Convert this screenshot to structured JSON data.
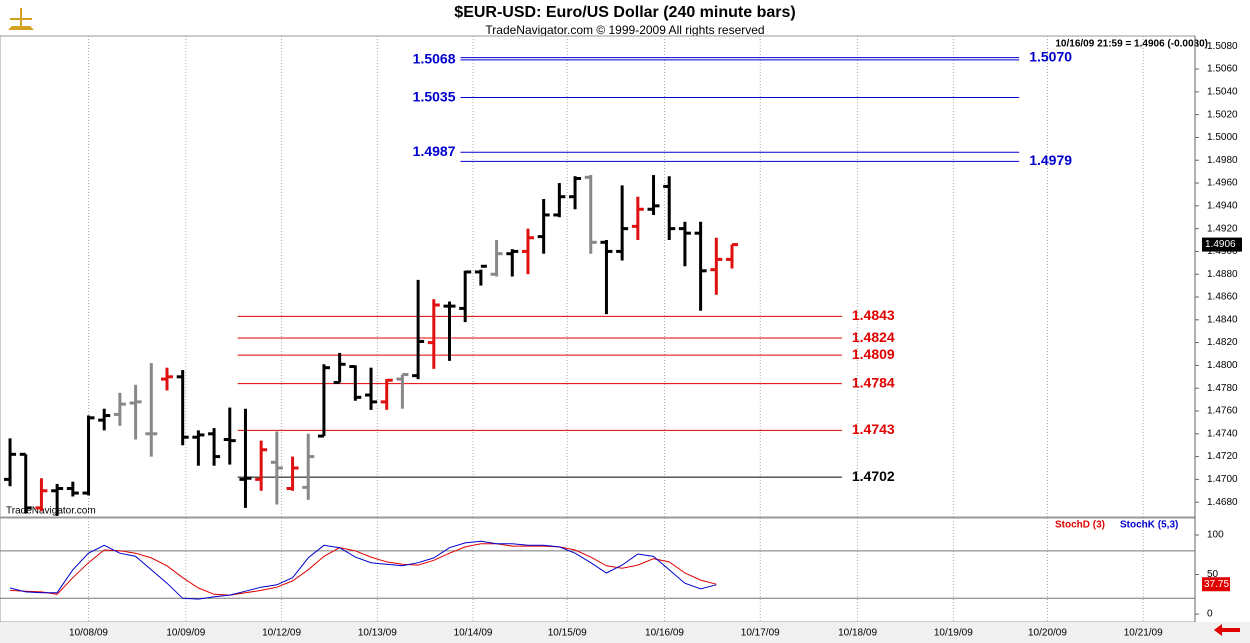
{
  "chart_data": [
    {
      "type": "ohlc",
      "title": "$EUR-USD:  Euro/US Dollar  (240 minute bars)",
      "subtitle": "TradeNavigator.com © 1999-2009 All rights reserved",
      "info": "10/16/09 21:59 = 1.4906 (-0.0030)",
      "watermark": "TradeNavigator.com",
      "open": [
        1.47,
        1.4722,
        1.4675,
        1.469,
        1.4692,
        1.4688,
        1.4752,
        1.4757,
        1.4767,
        1.474,
        1.4788,
        1.479,
        1.4737,
        1.474,
        1.4735,
        1.47,
        1.47,
        1.4715,
        1.4692,
        1.4693,
        1.4738,
        1.4785,
        1.4799,
        1.4774,
        1.4768,
        1.4788,
        1.4791,
        1.482,
        1.4852,
        1.485,
        1.4882,
        1.488,
        1.4898,
        1.49,
        1.4913,
        1.4932,
        1.4948,
        1.4965,
        1.4908,
        1.49,
        1.4922,
        1.4937,
        1.4957,
        1.492,
        1.4916,
        1.4884,
        1.4893
      ],
      "high": [
        1.4736,
        1.4722,
        1.4701,
        1.4696,
        1.4698,
        1.4756,
        1.4762,
        1.4776,
        1.4783,
        1.4802,
        1.4798,
        1.4796,
        1.4743,
        1.4745,
        1.4763,
        1.4762,
        1.4734,
        1.4742,
        1.472,
        1.474,
        1.4801,
        1.4811,
        1.48,
        1.4798,
        1.4788,
        1.4792,
        1.4875,
        1.4858,
        1.4856,
        1.4883,
        1.4884,
        1.491,
        1.4902,
        1.492,
        1.4946,
        1.496,
        1.4966,
        1.4967,
        1.491,
        1.4958,
        1.4948,
        1.4967,
        1.4966,
        1.4926,
        1.4926,
        1.4912,
        1.4906
      ],
      "low": [
        1.4694,
        1.467,
        1.4672,
        1.4668,
        1.4685,
        1.4686,
        1.4743,
        1.4747,
        1.4735,
        1.472,
        1.4778,
        1.473,
        1.4712,
        1.4712,
        1.4713,
        1.4675,
        1.469,
        1.4678,
        1.469,
        1.4682,
        1.4738,
        1.4785,
        1.4769,
        1.4761,
        1.4761,
        1.4762,
        1.4788,
        1.4797,
        1.4804,
        1.4838,
        1.487,
        1.4878,
        1.4878,
        1.488,
        1.4898,
        1.493,
        1.4937,
        1.4898,
        1.4845,
        1.4892,
        1.491,
        1.4932,
        1.491,
        1.4887,
        1.4848,
        1.4862,
        1.4885
      ],
      "close": [
        1.4722,
        1.4675,
        1.469,
        1.4692,
        1.4688,
        1.4754,
        1.4756,
        1.4766,
        1.4768,
        1.474,
        1.479,
        1.4737,
        1.4739,
        1.472,
        1.4734,
        1.4701,
        1.4726,
        1.471,
        1.471,
        1.472,
        1.4798,
        1.4801,
        1.4772,
        1.4768,
        1.4787,
        1.4792,
        1.4821,
        1.4853,
        1.4852,
        1.4882,
        1.4887,
        1.4898,
        1.49,
        1.4912,
        1.4932,
        1.4948,
        1.4964,
        1.4908,
        1.49,
        1.492,
        1.4937,
        1.494,
        1.492,
        1.4916,
        1.4883,
        1.4893,
        1.4906
      ],
      "bar_colors": [
        "#000000",
        "#000000",
        "#e01010",
        "#000000",
        "#000000",
        "#000000",
        "#000000",
        "#888888",
        "#888888",
        "#888888",
        "#e01010",
        "#000000",
        "#000000",
        "#000000",
        "#000000",
        "#000000",
        "#e01010",
        "#888888",
        "#e01010",
        "#888888",
        "#000000",
        "#000000",
        "#000000",
        "#000000",
        "#e01010",
        "#888888",
        "#000000",
        "#e01010",
        "#000000",
        "#000000",
        "#000000",
        "#888888",
        "#000000",
        "#e01010",
        "#000000",
        "#000000",
        "#000000",
        "#888888",
        "#000000",
        "#000000",
        "#e01010",
        "#000000",
        "#000000",
        "#000000",
        "#000000",
        "#e01010",
        "#e01010"
      ],
      "xlim": [
        -0.64,
        75.5
      ],
      "xticks": [
        {
          "value": 5,
          "label": "10/08/09"
        },
        {
          "value": 11.2,
          "label": "10/09/09"
        },
        {
          "value": 17.3,
          "label": "10/12/09"
        },
        {
          "value": 23.4,
          "label": "10/13/09"
        },
        {
          "value": 29.5,
          "label": "10/14/09"
        },
        {
          "value": 35.5,
          "label": "10/15/09"
        },
        {
          "value": 41.7,
          "label": "10/16/09"
        },
        {
          "value": 47.8,
          "label": "10/17/09"
        },
        {
          "value": 54,
          "label": "10/18/09"
        },
        {
          "value": 60.1,
          "label": "10/19/09"
        },
        {
          "value": 66.1,
          "label": "10/20/09"
        },
        {
          "value": 72.2,
          "label": "10/21/09"
        }
      ],
      "ylim": [
        1.4667,
        1.5089
      ],
      "yticks": [
        {
          "value": 1.468,
          "label": "1.4680"
        },
        {
          "value": 1.47,
          "label": "1.4700"
        },
        {
          "value": 1.472,
          "label": "1.4720"
        },
        {
          "value": 1.474,
          "label": "1.4740"
        },
        {
          "value": 1.476,
          "label": "1.4760"
        },
        {
          "value": 1.478,
          "label": "1.4780"
        },
        {
          "value": 1.48,
          "label": "1.4800"
        },
        {
          "value": 1.482,
          "label": "1.4820"
        },
        {
          "value": 1.484,
          "label": "1.4840"
        },
        {
          "value": 1.486,
          "label": "1.4860"
        },
        {
          "value": 1.488,
          "label": "1.4880"
        },
        {
          "value": 1.49,
          "label": "1.4900"
        },
        {
          "value": 1.492,
          "label": "1.4920"
        },
        {
          "value": 1.494,
          "label": "1.4940"
        },
        {
          "value": 1.496,
          "label": "1.4960"
        },
        {
          "value": 1.498,
          "label": "1.4980"
        },
        {
          "value": 1.5,
          "label": "1.5000"
        },
        {
          "value": 1.502,
          "label": "1.5020"
        },
        {
          "value": 1.504,
          "label": "1.5040"
        },
        {
          "value": 1.506,
          "label": "1.5060"
        },
        {
          "value": 1.508,
          "label": "1.5080"
        }
      ],
      "grid": true,
      "last_price": 1.4906,
      "levels": [
        {
          "value": 1.5068,
          "color": "#0000cc",
          "side": "left",
          "xrange": [
            28.7,
            64.3
          ]
        },
        {
          "value": 1.507,
          "label": "1.5070",
          "color": "#0000cc",
          "side": "right",
          "xrange": [
            28.7,
            64.3
          ]
        },
        {
          "value": 1.5035,
          "color": "#0000cc",
          "side": "left",
          "xrange": [
            28.7,
            64.3
          ]
        },
        {
          "value": 1.4987,
          "color": "#0000cc",
          "side": "left",
          "xrange": [
            28.7,
            64.3
          ]
        },
        {
          "value": 1.4979,
          "color": "#0000cc",
          "side": "right",
          "xrange": [
            28.7,
            64.3
          ]
        },
        {
          "value": 1.4843,
          "color": "#e00000",
          "side": "right",
          "xrange": [
            14.5,
            53
          ]
        },
        {
          "value": 1.4824,
          "color": "#e00000",
          "side": "right",
          "xrange": [
            14.5,
            53
          ]
        },
        {
          "value": 1.4809,
          "color": "#e00000",
          "side": "right",
          "xrange": [
            14.5,
            53
          ]
        },
        {
          "value": 1.4784,
          "color": "#e00000",
          "side": "right",
          "xrange": [
            14.5,
            53
          ]
        },
        {
          "value": 1.4743,
          "color": "#e00000",
          "side": "right",
          "xrange": [
            14.5,
            53
          ]
        },
        {
          "value": 1.4702,
          "color": "#000000",
          "side": "right",
          "xrange": [
            14.5,
            53
          ]
        }
      ]
    },
    {
      "type": "line",
      "series": [
        {
          "name": "StochD (3)",
          "color": "#e00000",
          "values": [
            30,
            29,
            28,
            25,
            46,
            65,
            81,
            80,
            77,
            71,
            61,
            46,
            33,
            25,
            24,
            27,
            30,
            34,
            42,
            56,
            73,
            84,
            80,
            72,
            66,
            63,
            62,
            68,
            77,
            85,
            89,
            89,
            86,
            86,
            86,
            85,
            81,
            72,
            61,
            58,
            62,
            70,
            66,
            52,
            43,
            37.75
          ]
        },
        {
          "name": "StochK (5,3)",
          "color": "#0000cc",
          "values": [
            33,
            28,
            27,
            27,
            56,
            77,
            87,
            77,
            73,
            56,
            39,
            20,
            19,
            22,
            24,
            29,
            34,
            37,
            46,
            71,
            87,
            84,
            72,
            65,
            63,
            61,
            65,
            71,
            84,
            90,
            92,
            89,
            89,
            87,
            87,
            85,
            77,
            65,
            52,
            62,
            76,
            73,
            56,
            39,
            32,
            37
          ]
        }
      ],
      "ylim": [
        -10,
        121.5
      ],
      "yticks": [
        0,
        50,
        100
      ],
      "reference_lines": [
        20,
        80
      ]
    }
  ]
}
